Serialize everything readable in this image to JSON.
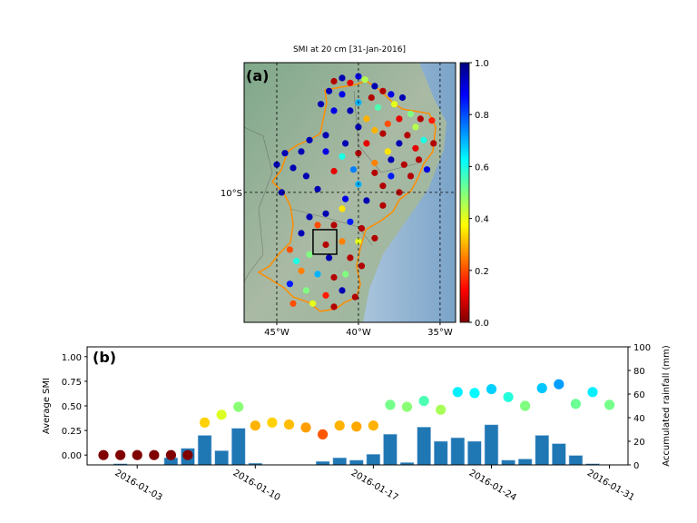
{
  "chart_data": [
    {
      "type": "scatter",
      "panel_label": "(a)",
      "title": "SMI at 20 cm [31-Jan-2016]",
      "x_ticks": [
        {
          "value": -45,
          "label": "45°W"
        },
        {
          "value": -40,
          "label": "40°W"
        },
        {
          "value": -35,
          "label": "35°W"
        }
      ],
      "y_ticks": [
        {
          "value": -10,
          "label": "10°S"
        }
      ],
      "xlim": [
        -47,
        -34.05
      ],
      "ylim": [
        -17.95,
        -2.06
      ],
      "gridlines": "dashed",
      "colormap": "jet_r",
      "colorbar": {
        "range": [
          0,
          1
        ],
        "ticks": [
          "0.0",
          "0.2",
          "0.4",
          "0.6",
          "0.8",
          "1.0"
        ]
      },
      "region_outline_color": "#ff8c00",
      "highlight_box": {
        "lon": [
          -42.78,
          -41.33
        ],
        "lat": [
          -12.28,
          -13.78
        ]
      },
      "stations_fields": [
        "lon",
        "lat",
        "smi"
      ],
      "stations": [
        [
          -41.5,
          -3.2,
          0.05
        ],
        [
          -41.0,
          -3.0,
          0.95
        ],
        [
          -40.5,
          -3.3,
          0.1
        ],
        [
          -40.0,
          -2.9,
          0.9
        ],
        [
          -39.6,
          -3.1,
          0.45
        ],
        [
          -39.0,
          -3.5,
          0.95
        ],
        [
          -38.5,
          -3.8,
          0.05
        ],
        [
          -38.0,
          -4.0,
          0.9
        ],
        [
          -37.3,
          -4.2,
          0.95
        ],
        [
          -41.8,
          -3.8,
          0.95
        ],
        [
          -41.0,
          -4.0,
          0.9
        ],
        [
          -40.0,
          -4.5,
          0.7
        ],
        [
          -39.2,
          -4.2,
          0.05
        ],
        [
          -38.8,
          -4.8,
          0.55
        ],
        [
          -37.8,
          -4.6,
          0.4
        ],
        [
          -36.8,
          -5.2,
          0.5
        ],
        [
          -36.2,
          -5.5,
          0.05
        ],
        [
          -35.5,
          -5.6,
          0.15
        ],
        [
          -36.5,
          -6.0,
          0.45
        ],
        [
          -37.5,
          -5.5,
          0.1
        ],
        [
          -38.2,
          -5.8,
          0.2
        ],
        [
          -39.5,
          -5.5,
          0.3
        ],
        [
          -40.5,
          -5.0,
          0.95
        ],
        [
          -41.5,
          -5.0,
          0.9
        ],
        [
          -42.3,
          -4.6,
          0.95
        ],
        [
          -40.0,
          -6.0,
          0.95
        ],
        [
          -39.0,
          -6.2,
          0.3
        ],
        [
          -38.5,
          -6.4,
          0.05
        ],
        [
          -37.0,
          -6.5,
          0.05
        ],
        [
          -36.0,
          -6.8,
          0.6
        ],
        [
          -35.4,
          -7.0,
          0.05
        ],
        [
          -36.5,
          -7.3,
          0.1
        ],
        [
          -37.5,
          -7.0,
          0.95
        ],
        [
          -38.2,
          -7.5,
          0.35
        ],
        [
          -39.5,
          -7.0,
          0.1
        ],
        [
          -40.8,
          -7.0,
          0.95
        ],
        [
          -42.0,
          -6.5,
          0.95
        ],
        [
          -43.0,
          -6.8,
          0.95
        ],
        [
          -43.5,
          -7.5,
          0.95
        ],
        [
          -42.0,
          -7.5,
          0.9
        ],
        [
          -41.0,
          -7.8,
          0.6
        ],
        [
          -40.0,
          -7.6,
          0.05
        ],
        [
          -39.0,
          -8.2,
          0.25
        ],
        [
          -38.0,
          -8.0,
          0.95
        ],
        [
          -37.2,
          -8.3,
          0.05
        ],
        [
          -36.3,
          -8.0,
          0.05
        ],
        [
          -35.8,
          -8.6,
          0.9
        ],
        [
          -36.8,
          -9.0,
          0.05
        ],
        [
          -38.0,
          -9.0,
          0.85
        ],
        [
          -39.0,
          -8.8,
          0.05
        ],
        [
          -40.3,
          -8.6,
          0.75
        ],
        [
          -41.5,
          -8.7,
          0.1
        ],
        [
          -43.2,
          -9.0,
          0.95
        ],
        [
          -44.5,
          -7.6,
          0.95
        ],
        [
          -45.0,
          -8.3,
          0.95
        ],
        [
          -44.0,
          -8.5,
          0.95
        ],
        [
          -42.5,
          -9.8,
          0.95
        ],
        [
          -44.7,
          -10.0,
          0.95
        ],
        [
          -40.0,
          -9.5,
          0.7
        ],
        [
          -38.5,
          -9.6,
          0.05
        ],
        [
          -37.5,
          -10.0,
          0.05
        ],
        [
          -38.5,
          -10.8,
          0.05
        ],
        [
          -39.5,
          -10.5,
          0.95
        ],
        [
          -40.8,
          -10.4,
          0.9
        ],
        [
          -41.0,
          -11.0,
          0.35
        ],
        [
          -42.0,
          -11.3,
          0.95
        ],
        [
          -43.0,
          -11.5,
          0.95
        ],
        [
          -42.5,
          -12.0,
          0.2
        ],
        [
          -41.5,
          -12.0,
          0.05
        ],
        [
          -40.5,
          -11.8,
          0.85
        ],
        [
          -39.8,
          -12.2,
          0.05
        ],
        [
          -39.0,
          -12.8,
          0.05
        ],
        [
          -40.0,
          -13.0,
          0.4
        ],
        [
          -41.0,
          -13.0,
          0.25
        ],
        [
          -42.0,
          -13.2,
          0.05
        ],
        [
          -43.5,
          -12.5,
          0.95
        ],
        [
          -44.2,
          -13.5,
          0.2
        ],
        [
          -43.0,
          -13.8,
          0.5
        ],
        [
          -41.8,
          -14.0,
          0.95
        ],
        [
          -40.5,
          -14.0,
          0.05
        ],
        [
          -39.8,
          -14.5,
          0.05
        ],
        [
          -40.8,
          -15.0,
          0.5
        ],
        [
          -41.5,
          -15.2,
          0.05
        ],
        [
          -42.5,
          -15.0,
          0.7
        ],
        [
          -43.5,
          -14.8,
          0.25
        ],
        [
          -44.2,
          -15.6,
          0.85
        ],
        [
          -43.2,
          -16.0,
          0.5
        ],
        [
          -42.0,
          -16.3,
          0.15
        ],
        [
          -41.0,
          -16.0,
          0.95
        ],
        [
          -40.2,
          -16.4,
          0.05
        ],
        [
          -41.5,
          -17.0,
          0.05
        ],
        [
          -42.8,
          -16.8,
          0.4
        ],
        [
          -44.0,
          -16.8,
          0.2
        ],
        [
          -43.8,
          -14.2,
          0.6
        ]
      ]
    },
    {
      "type": "bar+scatter",
      "panel_label": "(b)",
      "ylabel": "Average SMI",
      "ylabel_right": "Accumulated rainfall (mm)",
      "ylim": [
        -0.1,
        1.1
      ],
      "ylim_right": [
        0,
        100
      ],
      "yticks": [
        "0.00",
        "0.25",
        "0.50",
        "0.75",
        "1.00"
      ],
      "yticks_right": [
        "0",
        "20",
        "40",
        "60",
        "80",
        "100"
      ],
      "xticks": [
        "2016-01-03",
        "2016-01-10",
        "2016-01-17",
        "2016-01-24",
        "2016-01-31"
      ],
      "bar_color": "#1f77b4",
      "dates": [
        "2016-01-01",
        "2016-01-02",
        "2016-01-03",
        "2016-01-04",
        "2016-01-05",
        "2016-01-06",
        "2016-01-07",
        "2016-01-08",
        "2016-01-09",
        "2016-01-10",
        "2016-01-11",
        "2016-01-12",
        "2016-01-13",
        "2016-01-14",
        "2016-01-15",
        "2016-01-16",
        "2016-01-17",
        "2016-01-18",
        "2016-01-19",
        "2016-01-20",
        "2016-01-21",
        "2016-01-22",
        "2016-01-23",
        "2016-01-24",
        "2016-01-25",
        "2016-01-26",
        "2016-01-27",
        "2016-01-28",
        "2016-01-29",
        "2016-01-30",
        "2016-01-31"
      ],
      "smi": [
        0.0,
        0.0,
        0.0,
        0.0,
        0.0,
        0.0,
        0.33,
        0.41,
        0.49,
        0.3,
        0.33,
        0.31,
        0.28,
        0.21,
        0.3,
        0.29,
        0.3,
        0.51,
        0.49,
        0.55,
        0.46,
        0.64,
        0.63,
        0.67,
        0.59,
        0.5,
        0.68,
        0.72,
        0.52,
        0.64,
        0.51
      ],
      "rainfall_mm": [
        0,
        1,
        0,
        0,
        6,
        14,
        25,
        12,
        31,
        1.5,
        0,
        0,
        0,
        3,
        6,
        4,
        9,
        26,
        2,
        32,
        20,
        23,
        20,
        34,
        4,
        5,
        25,
        18,
        8,
        1,
        0
      ]
    }
  ]
}
